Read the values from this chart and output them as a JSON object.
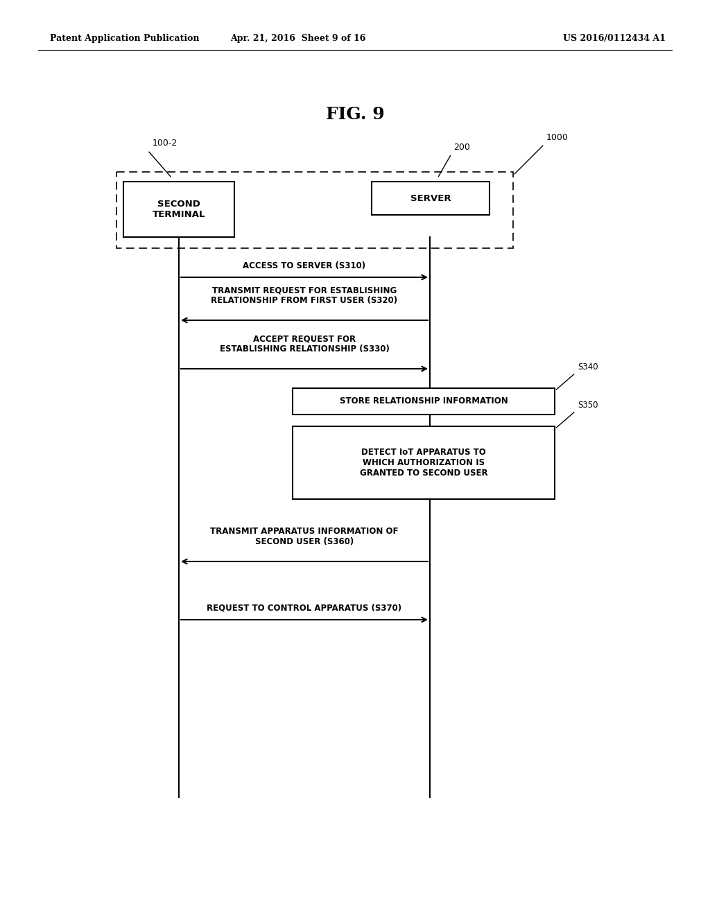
{
  "bg_color": "#ffffff",
  "title": "FIG. 9",
  "header_left": "Patent Application Publication",
  "header_mid": "Apr. 21, 2016  Sheet 9 of 16",
  "header_right": "US 2016/0112434 A1",
  "fig_width": 10.24,
  "fig_height": 13.2,
  "dpi": 100,
  "outer_box_label": "1000",
  "terminal_label": "100-2",
  "terminal_text": "SECOND\nTERMINAL",
  "server_label": "200",
  "server_text": "SERVER"
}
